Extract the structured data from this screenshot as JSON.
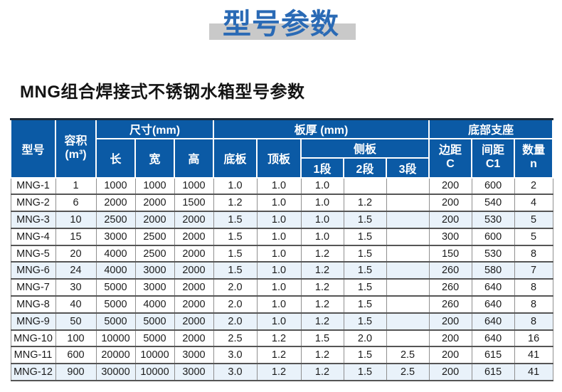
{
  "title": "型号参数",
  "subtitle": "MNG组合焊接式不锈钢水箱型号参数",
  "colors": {
    "title_blue": "#2a6ab5",
    "title_bar_gray": "#c9c9c9",
    "header_blue": "#0b5aa5",
    "header_top_border": "#1e2936",
    "row_highlight": "#e9f2fa"
  },
  "table": {
    "header": {
      "model": "型号",
      "volume_line1": "容积",
      "volume_line2": "(m³)",
      "size_group": "尺寸(mm)",
      "length": "长",
      "width": "宽",
      "height": "高",
      "thickness_group": "板厚 (mm)",
      "bottom_plate": "底板",
      "top_plate": "顶板",
      "side_plate": "侧板",
      "seg1": "1段",
      "seg2": "2段",
      "seg3": "3段",
      "support_group": "底部支座",
      "edge_line1": "边距",
      "edge_line2": "C",
      "spacing_line1": "间距",
      "spacing_line2": "C1",
      "qty_line1": "数量",
      "qty_line2": "n"
    },
    "rows": [
      [
        "MNG-1",
        "1",
        "1000",
        "1000",
        "1000",
        "1.0",
        "1.0",
        "1.0",
        "",
        "",
        "200",
        "600",
        "2"
      ],
      [
        "MNG-2",
        "6",
        "2000",
        "2000",
        "1500",
        "1.2",
        "1.0",
        "1.0",
        "1.2",
        "",
        "200",
        "540",
        "4"
      ],
      [
        "MNG-3",
        "10",
        "2500",
        "2000",
        "2000",
        "1.5",
        "1.0",
        "1.0",
        "1.5",
        "",
        "200",
        "530",
        "5"
      ],
      [
        "MNG-4",
        "15",
        "3000",
        "2500",
        "2000",
        "1.5",
        "1.0",
        "1.0",
        "1.5",
        "",
        "300",
        "600",
        "5"
      ],
      [
        "MNG-5",
        "20",
        "4000",
        "2500",
        "2000",
        "1.5",
        "1.0",
        "1.2",
        "1.5",
        "",
        "150",
        "530",
        "8"
      ],
      [
        "MNG-6",
        "24",
        "4000",
        "3000",
        "2000",
        "1.5",
        "1.0",
        "1.2",
        "1.5",
        "",
        "260",
        "580",
        "7"
      ],
      [
        "MNG-7",
        "30",
        "5000",
        "3000",
        "2000",
        "2.0",
        "1.0",
        "1.2",
        "1.5",
        "",
        "260",
        "640",
        "8"
      ],
      [
        "MNG-8",
        "40",
        "5000",
        "4000",
        "2000",
        "2.0",
        "1.0",
        "1.2",
        "1.5",
        "",
        "260",
        "640",
        "8"
      ],
      [
        "MNG-9",
        "50",
        "5000",
        "5000",
        "2000",
        "2.0",
        "1.0",
        "1.2",
        "1.5",
        "",
        "200",
        "640",
        "8"
      ],
      [
        "MNG-10",
        "100",
        "10000",
        "5000",
        "2000",
        "2.5",
        "1.2",
        "1.5",
        "2.0",
        "",
        "200",
        "640",
        "16"
      ],
      [
        "MNG-11",
        "600",
        "20000",
        "10000",
        "3000",
        "3.0",
        "1.2",
        "1.2",
        "1.5",
        "2.5",
        "200",
        "615",
        "41"
      ],
      [
        "MNG-12",
        "900",
        "30000",
        "10000",
        "3000",
        "3.0",
        "1.2",
        "1.2",
        "1.5",
        "2.5",
        "200",
        "615",
        "41"
      ]
    ]
  }
}
